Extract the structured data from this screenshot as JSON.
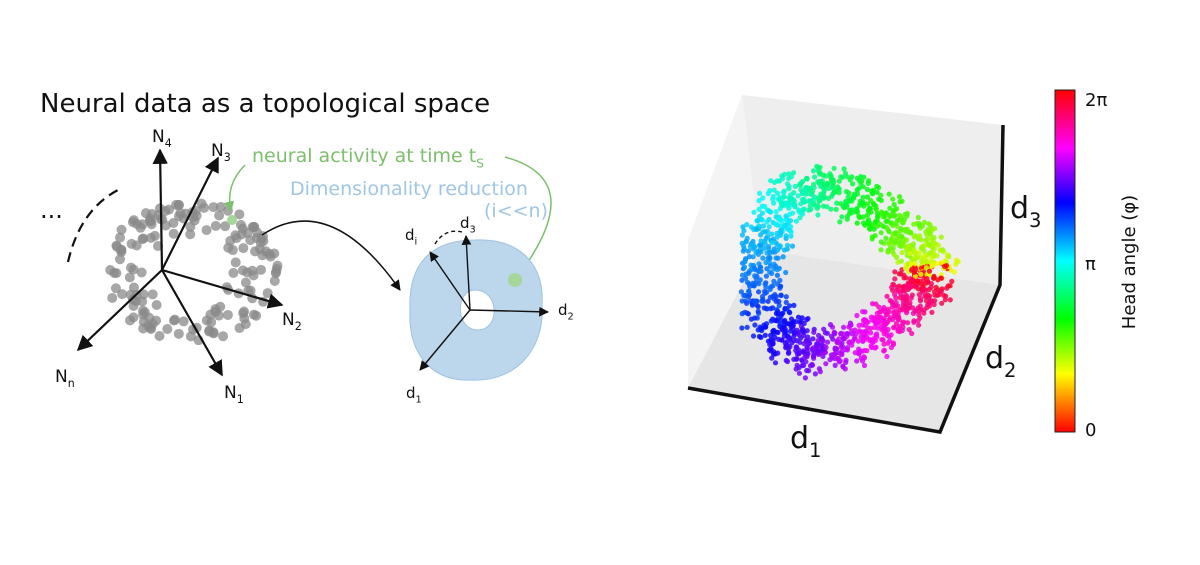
{
  "left_panel": {
    "title": "Neural data as a topological space",
    "ellipsis": "...",
    "axes": [
      {
        "base": "N",
        "sub": "4"
      },
      {
        "base": "N",
        "sub": "3"
      },
      {
        "base": "N",
        "sub": "2"
      },
      {
        "base": "N",
        "sub": "1"
      },
      {
        "base": "N",
        "sub": "n"
      }
    ],
    "annotation": {
      "base": "neural activity at time t",
      "sub": "S"
    },
    "reduction_label": "Dimensionality reduction",
    "reduction_note": "(i<<n)",
    "reduced_axes": [
      {
        "base": "d",
        "sub": "3"
      },
      {
        "base": "d",
        "sub": "i"
      },
      {
        "base": "d",
        "sub": "2"
      },
      {
        "base": "d",
        "sub": "1"
      }
    ]
  },
  "right_panel": {
    "axes": [
      {
        "base": "d",
        "sub": "1"
      },
      {
        "base": "d",
        "sub": "2"
      },
      {
        "base": "d",
        "sub": "3"
      }
    ],
    "colorbar": {
      "label": "Head angle (φ)",
      "ticks": [
        "2π",
        "π",
        "0"
      ]
    }
  }
}
